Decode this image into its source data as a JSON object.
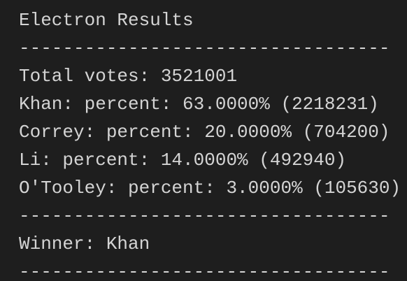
{
  "terminal": {
    "lines": [
      "Electron Results",
      "----------------------------------",
      "Total votes: 3521001",
      "Khan: percent: 63.0000% (2218231)",
      "Correy: percent: 20.0000% (704200)",
      "Li: percent: 14.0000% (492940)",
      "O'Tooley: percent: 3.0000% (105630)",
      "----------------------------------",
      "Winner: Khan",
      "----------------------------------"
    ]
  }
}
